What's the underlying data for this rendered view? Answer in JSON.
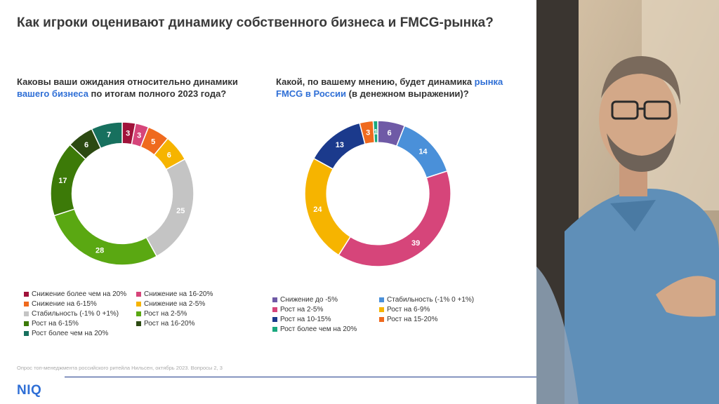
{
  "title": "Как игроки оценивают динамику собственного бизнеса и FMCG-рынка?",
  "q1": {
    "part1": "Каковы ваши ожидания относительно динамики ",
    "highlight": "вашего бизнеса",
    "part2": " по итогам полного 2023 года?"
  },
  "q2": {
    "part1": "Какой, по вашему мнению, будет динамика ",
    "highlight": "рынка FMCG в России",
    "part2": " (в денежном выражении)?"
  },
  "footnote": "Опрос топ-менеджмента российского ритейла Нильсен, октябрь 2023. Вопросы 2, 3",
  "logo": "NIQ",
  "photo": {
    "description": "photo-of-businessman-speaking"
  },
  "chart_data": [
    {
      "type": "pie",
      "donut": true,
      "categories": [
        "Снижение более чем на 20%",
        "Снижение на 16-20%",
        "Снижение на 6-15%",
        "Снижение на 2-5%",
        "Стабильность (-1% 0 +1%)",
        "Рост на 2-5%",
        "Рост на 6-15%",
        "Рост на 16-20%",
        "Рост более чем на 20%"
      ],
      "values": [
        3,
        3,
        5,
        6,
        25,
        28,
        17,
        6,
        7
      ],
      "colors": [
        "#a0123a",
        "#d6457a",
        "#ef6a1e",
        "#f6b400",
        "#c4c4c4",
        "#5aa812",
        "#3c7a08",
        "#2c4a12",
        "#17705e"
      ],
      "legend_position": "bottom"
    },
    {
      "type": "pie",
      "donut": true,
      "categories": [
        "Снижение до -5%",
        "Стабильность (-1% 0 +1%)",
        "Рост на 2-5%",
        "Рост на 6-9%",
        "Рост на 10-15%",
        "Рост на 15-20%",
        "Рост более чем на 20%"
      ],
      "values": [
        6,
        14,
        39,
        24,
        13,
        3,
        1
      ],
      "colors": [
        "#6f5aa6",
        "#4a90d9",
        "#d6457a",
        "#f6b400",
        "#1b3a8c",
        "#ef6a1e",
        "#1aa87e"
      ],
      "legend_position": "bottom"
    }
  ]
}
